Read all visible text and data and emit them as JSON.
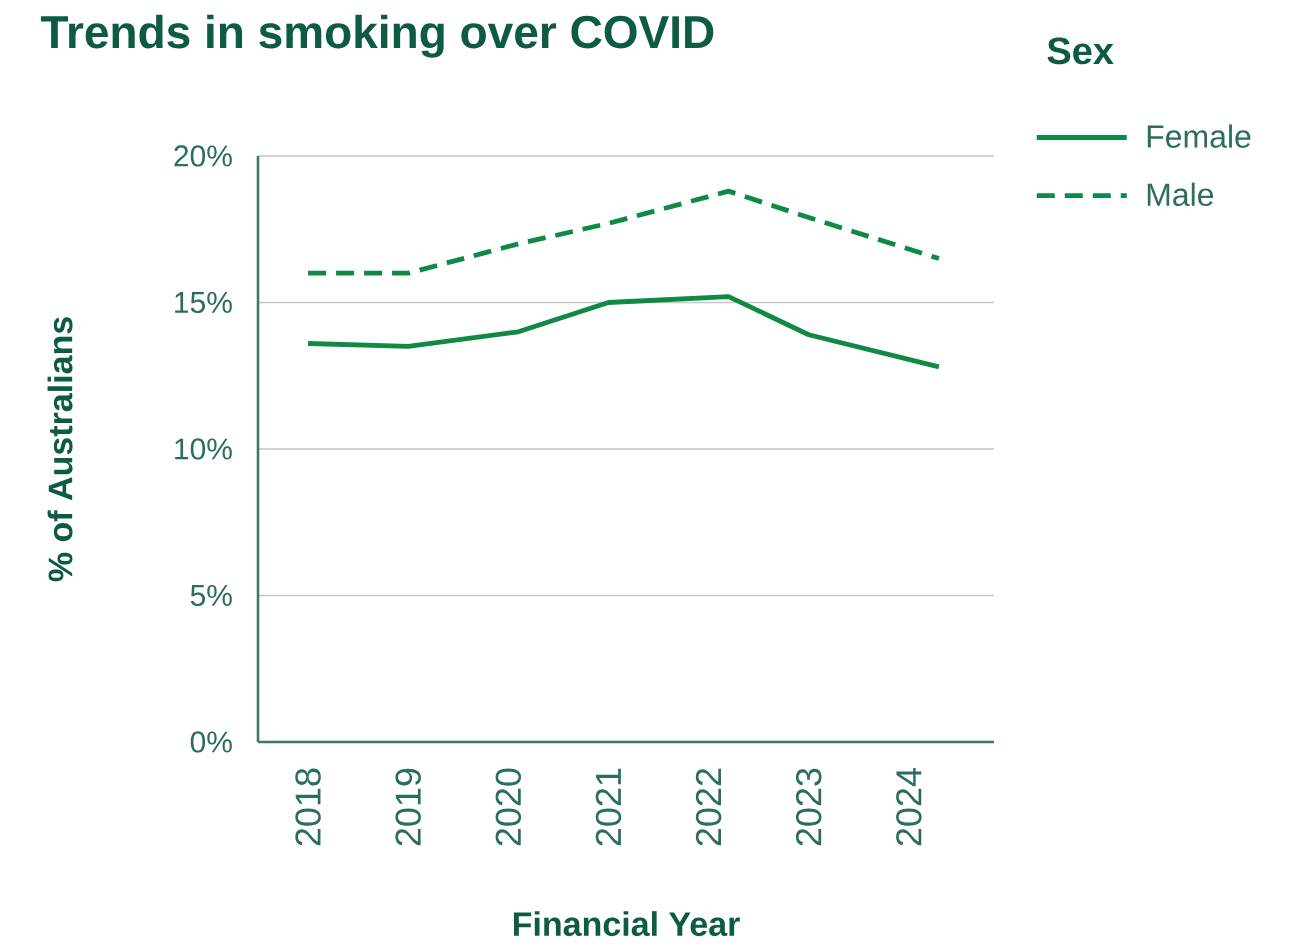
{
  "chart_data": {
    "type": "line",
    "title": "Trends in smoking over COVID",
    "xlabel": "Financial Year",
    "ylabel": "% of Australians",
    "legend_title": "Sex",
    "x": [
      2018,
      2019,
      2020.1,
      2021,
      2022.2,
      2023,
      2024.3
    ],
    "series": [
      {
        "name": "Female",
        "color": "#0e8a44",
        "line_style": "solid",
        "values": [
          13.6,
          13.5,
          14.0,
          15.0,
          15.2,
          13.9,
          12.8
        ]
      },
      {
        "name": "Male",
        "color": "#0e8a44",
        "line_style": "dashed",
        "values": [
          16.0,
          16.0,
          17.0,
          17.7,
          18.8,
          17.9,
          16.5
        ]
      }
    ],
    "xlim": [
      2017.5,
      2024.85
    ],
    "xticks": [
      2018,
      2019,
      2020,
      2021,
      2022,
      2023,
      2024
    ],
    "ylim": [
      0,
      20
    ],
    "yticks": [
      {
        "value": 0,
        "label": "0%"
      },
      {
        "value": 5,
        "label": "5%"
      },
      {
        "value": 10,
        "label": "10%"
      },
      {
        "value": 15,
        "label": "15%"
      },
      {
        "value": 20,
        "label": "20%"
      }
    ],
    "grid": "y",
    "legend": "top right",
    "marker": "none"
  }
}
